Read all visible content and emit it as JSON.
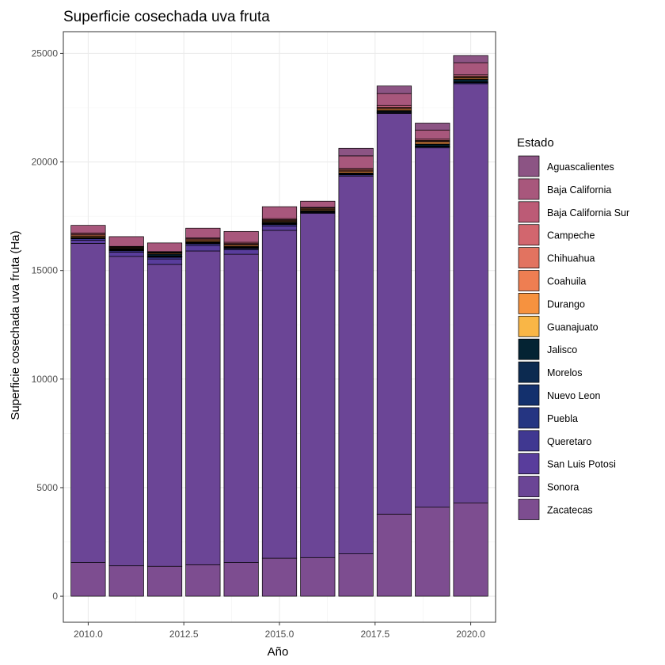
{
  "chart_data": {
    "type": "bar",
    "stacked": true,
    "title": "Superficie cosechada uva fruta",
    "xlabel": "Año",
    "ylabel": "Superficie cosechada uva fruta (Ha)",
    "x": [
      2010,
      2011,
      2012,
      2013,
      2014,
      2015,
      2016,
      2017,
      2018,
      2019,
      2020
    ],
    "x_ticks": [
      2010.0,
      2012.5,
      2015.0,
      2017.5,
      2020.0
    ],
    "x_tick_labels": [
      "2010.0",
      "2012.5",
      "2015.0",
      "2017.5",
      "2020.0"
    ],
    "xlim": [
      2009.35,
      2020.65
    ],
    "y_ticks": [
      0,
      5000,
      10000,
      15000,
      20000,
      25000
    ],
    "y_tick_labels": [
      "0",
      "5000",
      "10000",
      "15000",
      "20000",
      "25000"
    ],
    "ylim": [
      -1200,
      26000
    ],
    "grid": true,
    "legend_title": "Estado",
    "legend_position": "right",
    "series": [
      {
        "name": "Aguascalientes",
        "color": "#8c5484",
        "values": [
          0,
          0,
          0,
          0,
          0,
          0,
          0,
          350,
          350,
          320,
          330
        ]
      },
      {
        "name": "Baja California",
        "color": "#a8577c",
        "values": [
          350,
          450,
          400,
          450,
          500,
          550,
          280,
          580,
          550,
          420,
          560
        ]
      },
      {
        "name": "Baja California Sur",
        "color": "#bc5b76",
        "values": [
          60,
          20,
          20,
          40,
          60,
          50,
          30,
          50,
          80,
          60,
          60
        ]
      },
      {
        "name": "Campeche",
        "color": "#d2666e",
        "values": [
          0,
          0,
          0,
          0,
          0,
          0,
          0,
          0,
          0,
          0,
          0
        ]
      },
      {
        "name": "Chihuahua",
        "color": "#e27360",
        "values": [
          40,
          20,
          20,
          40,
          30,
          30,
          20,
          40,
          50,
          40,
          40
        ]
      },
      {
        "name": "Coahuila",
        "color": "#ee7e52",
        "values": [
          50,
          30,
          30,
          40,
          40,
          40,
          40,
          50,
          40,
          40,
          40
        ]
      },
      {
        "name": "Durango",
        "color": "#f6923f",
        "values": [
          50,
          30,
          40,
          50,
          50,
          40,
          50,
          60,
          60,
          80,
          60
        ]
      },
      {
        "name": "Guanajuato",
        "color": "#f9b646",
        "values": [
          20,
          10,
          10,
          20,
          20,
          10,
          20,
          20,
          20,
          20,
          20
        ]
      },
      {
        "name": "Jalisco",
        "color": "#042333",
        "values": [
          20,
          30,
          80,
          20,
          30,
          40,
          40,
          30,
          40,
          80,
          100
        ]
      },
      {
        "name": "Morelos",
        "color": "#0c2a50",
        "values": [
          10,
          20,
          20,
          20,
          20,
          20,
          20,
          20,
          20,
          20,
          20
        ]
      },
      {
        "name": "Nuevo Leon",
        "color": "#13306d",
        "values": [
          10,
          20,
          20,
          20,
          20,
          20,
          10,
          10,
          10,
          10,
          10
        ]
      },
      {
        "name": "Puebla",
        "color": "#253582",
        "values": [
          10,
          20,
          20,
          20,
          20,
          20,
          10,
          10,
          10,
          10,
          10
        ]
      },
      {
        "name": "Queretaro",
        "color": "#403891",
        "values": [
          60,
          60,
          80,
          80,
          60,
          70,
          40,
          60,
          40,
          40,
          50
        ]
      },
      {
        "name": "San Luis Potosi",
        "color": "#593d9c",
        "values": [
          150,
          200,
          250,
          250,
          200,
          200,
          0,
          0,
          0,
          0,
          0
        ]
      },
      {
        "name": "Sonora",
        "color": "#6b4596",
        "values": [
          14700,
          14250,
          13900,
          14450,
          14200,
          15100,
          15850,
          17400,
          18450,
          16550,
          19300
        ]
      },
      {
        "name": "Zacatecas",
        "color": "#7d4d90",
        "values": [
          1550,
          1400,
          1380,
          1450,
          1550,
          1750,
          1780,
          1950,
          3780,
          4100,
          4300
        ]
      }
    ]
  }
}
